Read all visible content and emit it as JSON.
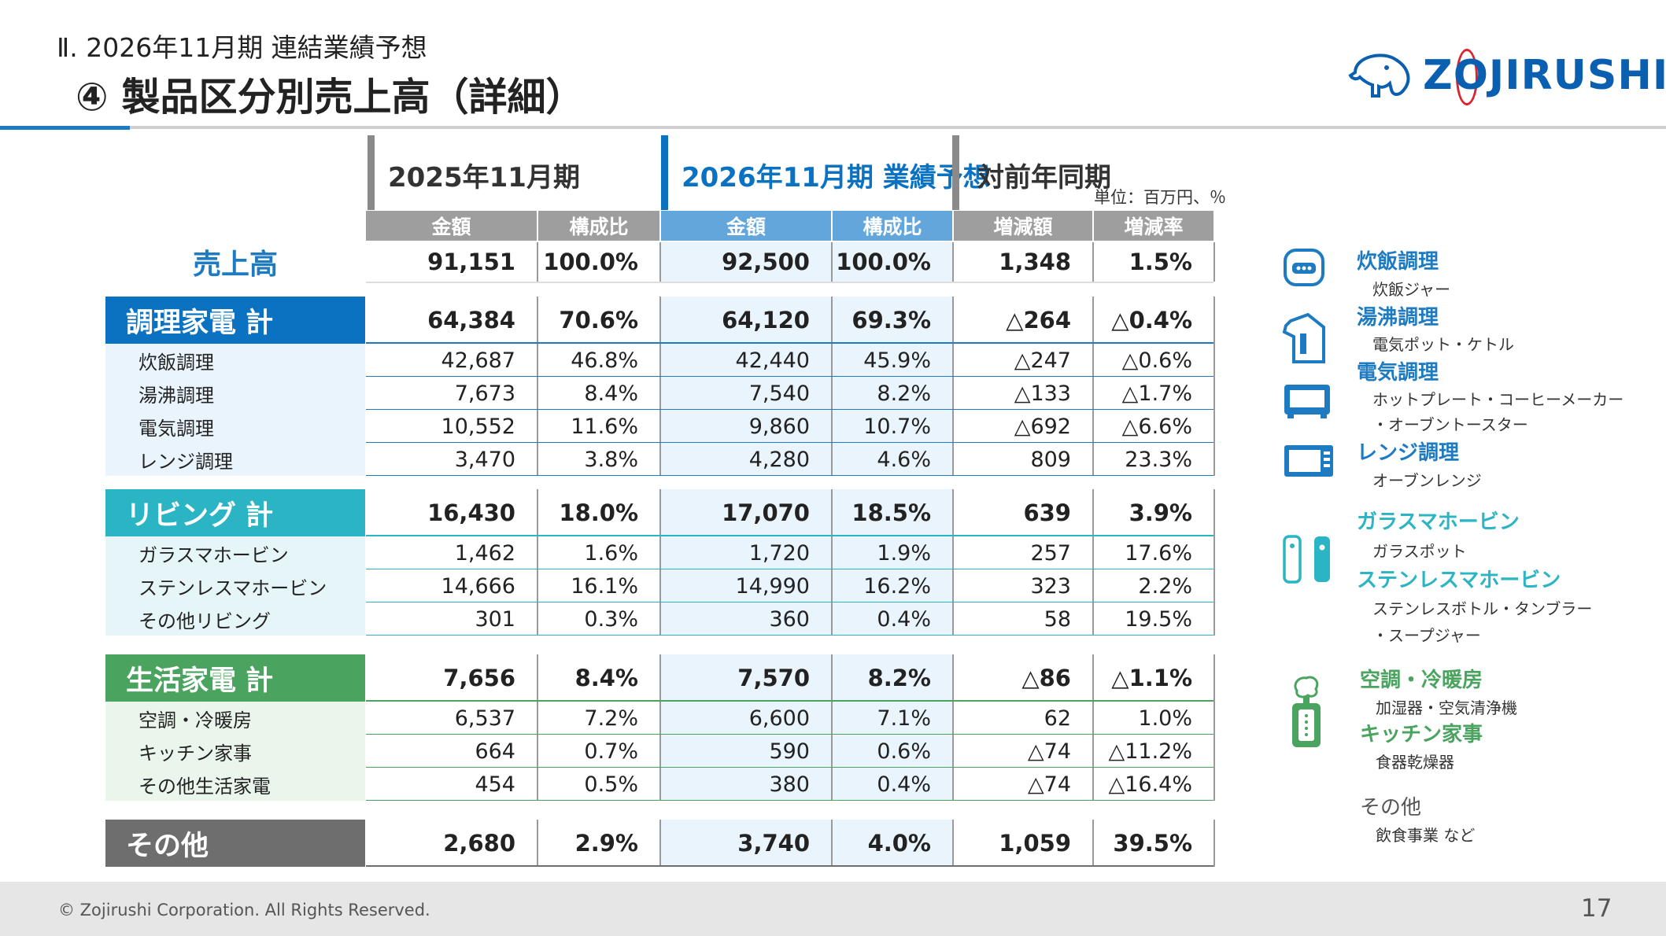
{
  "header": {
    "section": "Ⅱ. 2026年11月期 連結業績予想",
    "title": "④ 製品区分別売上高（詳細）",
    "logo_text": "ZOJIRUSHI"
  },
  "columns": {
    "prev": "2025年11月期",
    "next": "2026年11月期 業績予想",
    "yoy": "対前年同期",
    "unit": "単位：百万円、％",
    "subheaders": [
      "金額",
      "構成比",
      "金額",
      "構成比",
      "増減額",
      "増減率"
    ]
  },
  "sales": {
    "label": "売上高",
    "values": [
      "91,151",
      "100.0%",
      "92,500",
      "100.0%",
      "1,348",
      "1.5%"
    ]
  },
  "categories": [
    {
      "label": "調理家電 計",
      "values": [
        "64,384",
        "70.6%",
        "64,120",
        "69.3%",
        "△264",
        "△0.4%"
      ],
      "items": [
        {
          "label": "炊飯調理",
          "values": [
            "42,687",
            "46.8%",
            "42,440",
            "45.9%",
            "△247",
            "△0.6%"
          ]
        },
        {
          "label": "湯沸調理",
          "values": [
            "7,673",
            "8.4%",
            "7,540",
            "8.2%",
            "△133",
            "△1.7%"
          ]
        },
        {
          "label": "電気調理",
          "values": [
            "10,552",
            "11.6%",
            "9,860",
            "10.7%",
            "△692",
            "△6.6%"
          ]
        },
        {
          "label": "レンジ調理",
          "values": [
            "3,470",
            "3.8%",
            "4,280",
            "4.6%",
            "809",
            "23.3%"
          ]
        }
      ]
    },
    {
      "label": "リビング 計",
      "values": [
        "16,430",
        "18.0%",
        "17,070",
        "18.5%",
        "639",
        "3.9%"
      ],
      "items": [
        {
          "label": "ガラスマホービン",
          "values": [
            "1,462",
            "1.6%",
            "1,720",
            "1.9%",
            "257",
            "17.6%"
          ]
        },
        {
          "label": "ステンレスマホービン",
          "values": [
            "14,666",
            "16.1%",
            "14,990",
            "16.2%",
            "323",
            "2.2%"
          ]
        },
        {
          "label": "その他リビング",
          "values": [
            "301",
            "0.3%",
            "360",
            "0.4%",
            "58",
            "19.5%"
          ]
        }
      ]
    },
    {
      "label": "生活家電 計",
      "values": [
        "7,656",
        "8.4%",
        "7,570",
        "8.2%",
        "△86",
        "△1.1%"
      ],
      "items": [
        {
          "label": "空調・冷暖房",
          "values": [
            "6,537",
            "7.2%",
            "6,600",
            "7.1%",
            "62",
            "1.0%"
          ]
        },
        {
          "label": "キッチン家事",
          "values": [
            "664",
            "0.7%",
            "590",
            "0.6%",
            "△74",
            "△11.2%"
          ]
        },
        {
          "label": "その他生活家電",
          "values": [
            "454",
            "0.5%",
            "380",
            "0.4%",
            "△74",
            "△16.4%"
          ]
        }
      ]
    },
    {
      "label": "その他",
      "values": [
        "2,680",
        "2.9%",
        "3,740",
        "4.0%",
        "1,059",
        "39.5%"
      ],
      "items": []
    }
  ],
  "legend": [
    {
      "title": "炊飯調理",
      "sub": [
        "炊飯ジャー"
      ],
      "color": "#1e7bc1"
    },
    {
      "title": "湯沸調理",
      "sub": [
        "電気ポット・ケトル"
      ],
      "color": "#1e7bc1"
    },
    {
      "title": "電気調理",
      "sub": [
        "ホットプレート・コーヒーメーカー",
        "・オーブントースター"
      ],
      "color": "#1e7bc1"
    },
    {
      "title": "レンジ調理",
      "sub": [
        "オーブンレンジ"
      ],
      "color": "#1e7bc1"
    },
    {
      "title": "ガラスマホービン",
      "sub": [
        "ガラスポット"
      ],
      "color": "#2ab4c4"
    },
    {
      "title": "ステンレスマホービン",
      "sub": [
        "ステンレスボトル・タンブラー",
        "・スープジャー"
      ],
      "color": "#2ab4c4"
    },
    {
      "title": "空調・冷暖房",
      "sub": [
        "加湿器・空気清浄機"
      ],
      "color": "#4aa35f"
    },
    {
      "title": "キッチン家事",
      "sub": [
        "食器乾燥器"
      ],
      "color": "#4aa35f"
    },
    {
      "title": "その他",
      "sub": [
        "飲食事業 など"
      ],
      "color": "#555555"
    }
  ],
  "colors": {
    "blue": "#0b72c2",
    "teal": "#2ab4c4",
    "green": "#4aa35f",
    "gray": "#6e6e6e",
    "next_highlight": "#eaf4fc"
  },
  "footer": {
    "copyright": "© Zojirushi Corporation. All Rights Reserved.",
    "page": "17"
  }
}
